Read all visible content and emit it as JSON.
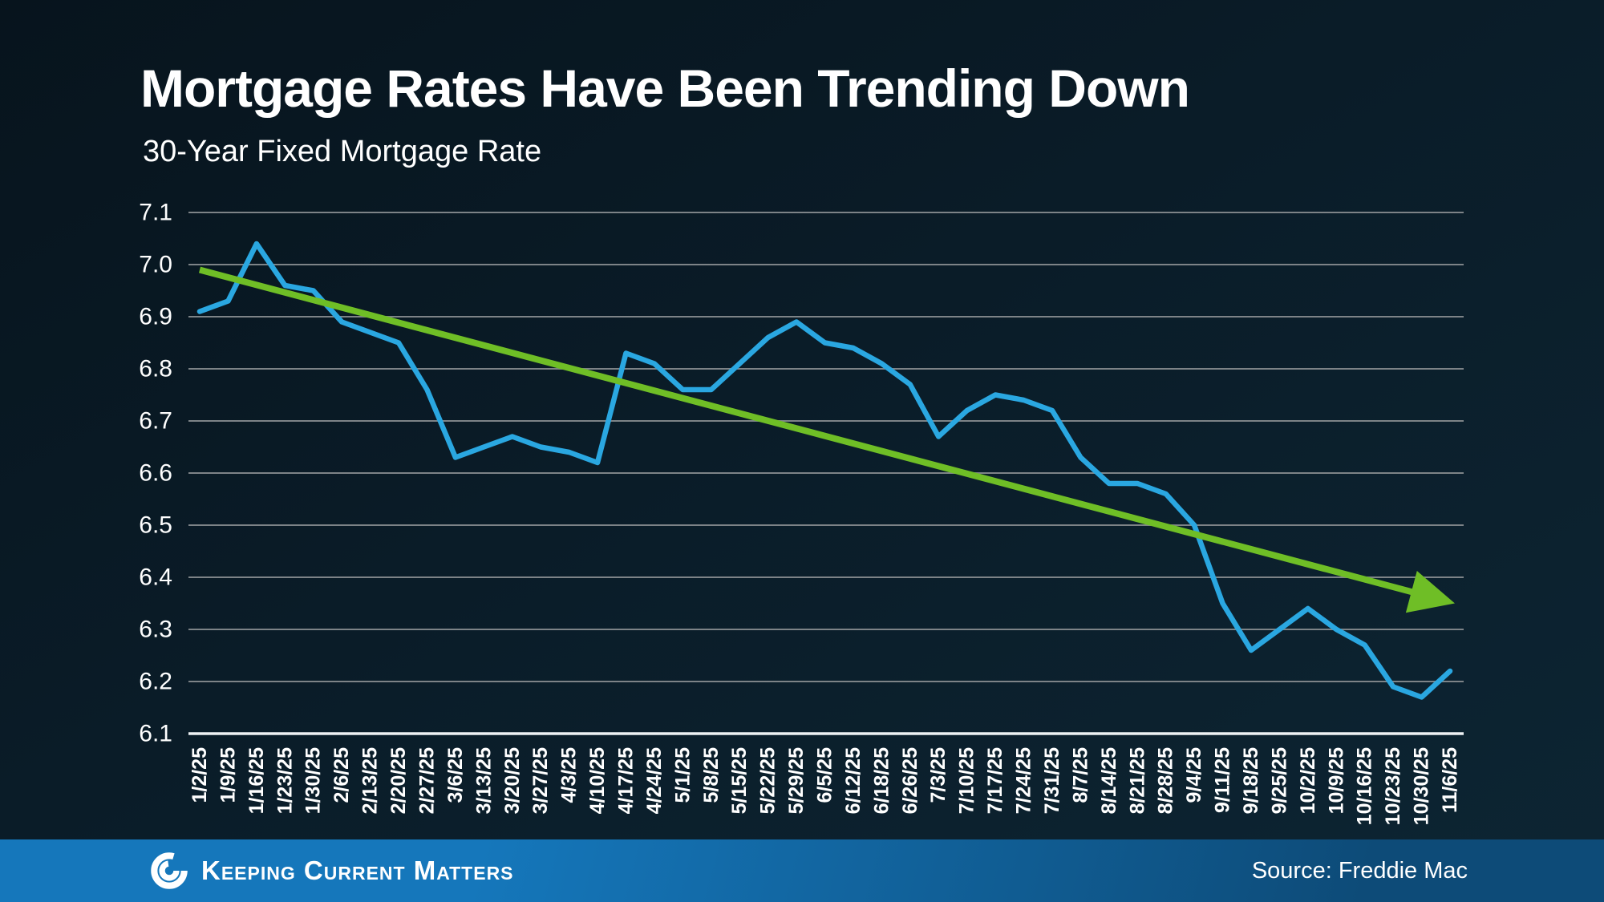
{
  "header": {
    "title": "Mortgage Rates Have Been Trending Down",
    "subtitle": "30-Year Fixed Mortgage Rate"
  },
  "footer": {
    "brand": "Keeping Current Matters",
    "logo": "kcm-swirl-icon",
    "source": "Source: Freddie Mac"
  },
  "theme": {
    "background_top": "#07141d",
    "background_bottom": "#0d2533",
    "text_color": "#ffffff",
    "grid_color": "#7d8387",
    "axis_color": "#eef2f4",
    "line_blue": "#2aa7e1",
    "trend_green": "#6fbe26",
    "footer_blue_left": "#1577bb",
    "footer_blue_right": "#0d4b78"
  },
  "chart_data": {
    "type": "line",
    "title": "Mortgage Rates Have Been Trending Down",
    "subtitle": "30-Year Fixed Mortgage Rate",
    "xlabel": "",
    "ylabel": "",
    "ylim": [
      6.1,
      7.1
    ],
    "ytick_step": 0.1,
    "ytick_labels": [
      "6.1",
      "6.2",
      "6.3",
      "6.4",
      "6.5",
      "6.6",
      "6.7",
      "6.8",
      "6.9",
      "7.0",
      "7.1"
    ],
    "grid": true,
    "legend_position": "none",
    "categories": [
      "1/2/25",
      "1/9/25",
      "1/16/25",
      "1/23/25",
      "1/30/25",
      "2/6/25",
      "2/13/25",
      "2/20/25",
      "2/27/25",
      "3/6/25",
      "3/13/25",
      "3/20/25",
      "3/27/25",
      "4/3/25",
      "4/10/25",
      "4/17/25",
      "4/24/25",
      "5/1/25",
      "5/8/25",
      "5/15/25",
      "5/22/25",
      "5/29/25",
      "6/5/25",
      "6/12/25",
      "6/18/25",
      "6/26/25",
      "7/3/25",
      "7/10/25",
      "7/17/25",
      "7/24/25",
      "7/31/25",
      "8/7/25",
      "8/14/25",
      "8/21/25",
      "8/28/25",
      "9/4/25",
      "9/11/25",
      "9/18/25",
      "9/25/25",
      "10/2/25",
      "10/9/25",
      "10/16/25",
      "10/23/25",
      "10/30/25",
      "11/6/25"
    ],
    "series": [
      {
        "name": "30-Year Fixed Mortgage Rate",
        "type": "line",
        "color": "#2aa7e1",
        "values": [
          6.91,
          6.93,
          7.04,
          6.96,
          6.95,
          6.89,
          6.87,
          6.85,
          6.76,
          6.63,
          6.65,
          6.67,
          6.65,
          6.64,
          6.62,
          6.83,
          6.81,
          6.76,
          6.76,
          6.81,
          6.86,
          6.89,
          6.85,
          6.84,
          6.81,
          6.77,
          6.67,
          6.72,
          6.75,
          6.74,
          6.72,
          6.63,
          6.58,
          6.58,
          6.56,
          6.5,
          6.35,
          6.26,
          6.3,
          6.34,
          6.3,
          6.27,
          6.19,
          6.17,
          6.22
        ]
      },
      {
        "name": "Downward trend arrow",
        "type": "trend-arrow",
        "color": "#6fbe26",
        "start_value": 6.99,
        "end_value": 6.35
      }
    ]
  }
}
